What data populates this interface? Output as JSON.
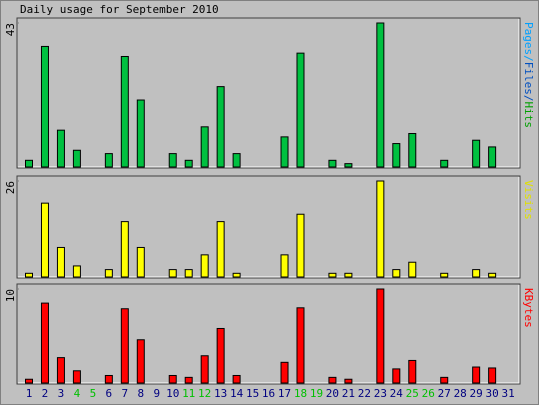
{
  "title": "Daily usage for September 2010",
  "chart_data": [
    {
      "type": "bar",
      "ylim": [
        0,
        43
      ],
      "yticks": [
        43
      ],
      "label_parts": [
        {
          "text": "Pages/",
          "color": "#00a0ff"
        },
        {
          "text": "Files/",
          "color": "#0050c0"
        },
        {
          "text": "Hits",
          "color": "#00a000"
        }
      ],
      "series": [
        {
          "color": "#00c040",
          "values": [
            2,
            36,
            11,
            5,
            0,
            4,
            33,
            20,
            0,
            4,
            2,
            12,
            24,
            4,
            0,
            0,
            9,
            34,
            0,
            2,
            1,
            0,
            43,
            7,
            10,
            0,
            2,
            0,
            8,
            6,
            0
          ]
        }
      ]
    },
    {
      "type": "bar",
      "ylim": [
        0,
        26
      ],
      "yticks": [
        26
      ],
      "label_parts": [
        {
          "text": "Visits",
          "color": "#e0e000"
        }
      ],
      "series": [
        {
          "color": "#ffff00",
          "values": [
            1,
            20,
            8,
            3,
            0,
            2,
            15,
            8,
            0,
            2,
            2,
            6,
            15,
            1,
            0,
            0,
            6,
            17,
            0,
            1,
            1,
            0,
            26,
            2,
            4,
            0,
            1,
            0,
            2,
            1,
            0
          ]
        }
      ]
    },
    {
      "type": "bar",
      "ylim": [
        0,
        10
      ],
      "yticks": [
        10
      ],
      "label_parts": [
        {
          "text": "KBytes",
          "color": "#ff0000"
        }
      ],
      "series": [
        {
          "color": "#ff0000",
          "values": [
            0.4,
            8.5,
            2.7,
            1.3,
            0,
            0.8,
            7.9,
            4.6,
            0,
            0.8,
            0.6,
            2.9,
            5.8,
            0.8,
            0,
            0,
            2.2,
            8.0,
            0,
            0.6,
            0.4,
            0,
            10.0,
            1.5,
            2.4,
            0,
            0.6,
            0,
            1.7,
            1.6,
            0
          ]
        }
      ],
      "categories": [
        "1",
        "2",
        "3",
        "4",
        "5",
        "6",
        "7",
        "8",
        "9",
        "10",
        "11",
        "12",
        "13",
        "14",
        "15",
        "16",
        "17",
        "18",
        "19",
        "20",
        "21",
        "22",
        "23",
        "24",
        "25",
        "26",
        "27",
        "28",
        "29",
        "30",
        "31"
      ],
      "category_colors": [
        "#000080",
        "#000080",
        "#000080",
        "#00c000",
        "#00c000",
        "#000080",
        "#000080",
        "#000080",
        "#000080",
        "#000080",
        "#00c000",
        "#00c000",
        "#000080",
        "#000080",
        "#000080",
        "#000080",
        "#000080",
        "#00c000",
        "#00c000",
        "#000080",
        "#000080",
        "#000080",
        "#000080",
        "#000080",
        "#00c000",
        "#00c000",
        "#000080",
        "#000080",
        "#000080",
        "#000080",
        "#000080"
      ]
    }
  ]
}
